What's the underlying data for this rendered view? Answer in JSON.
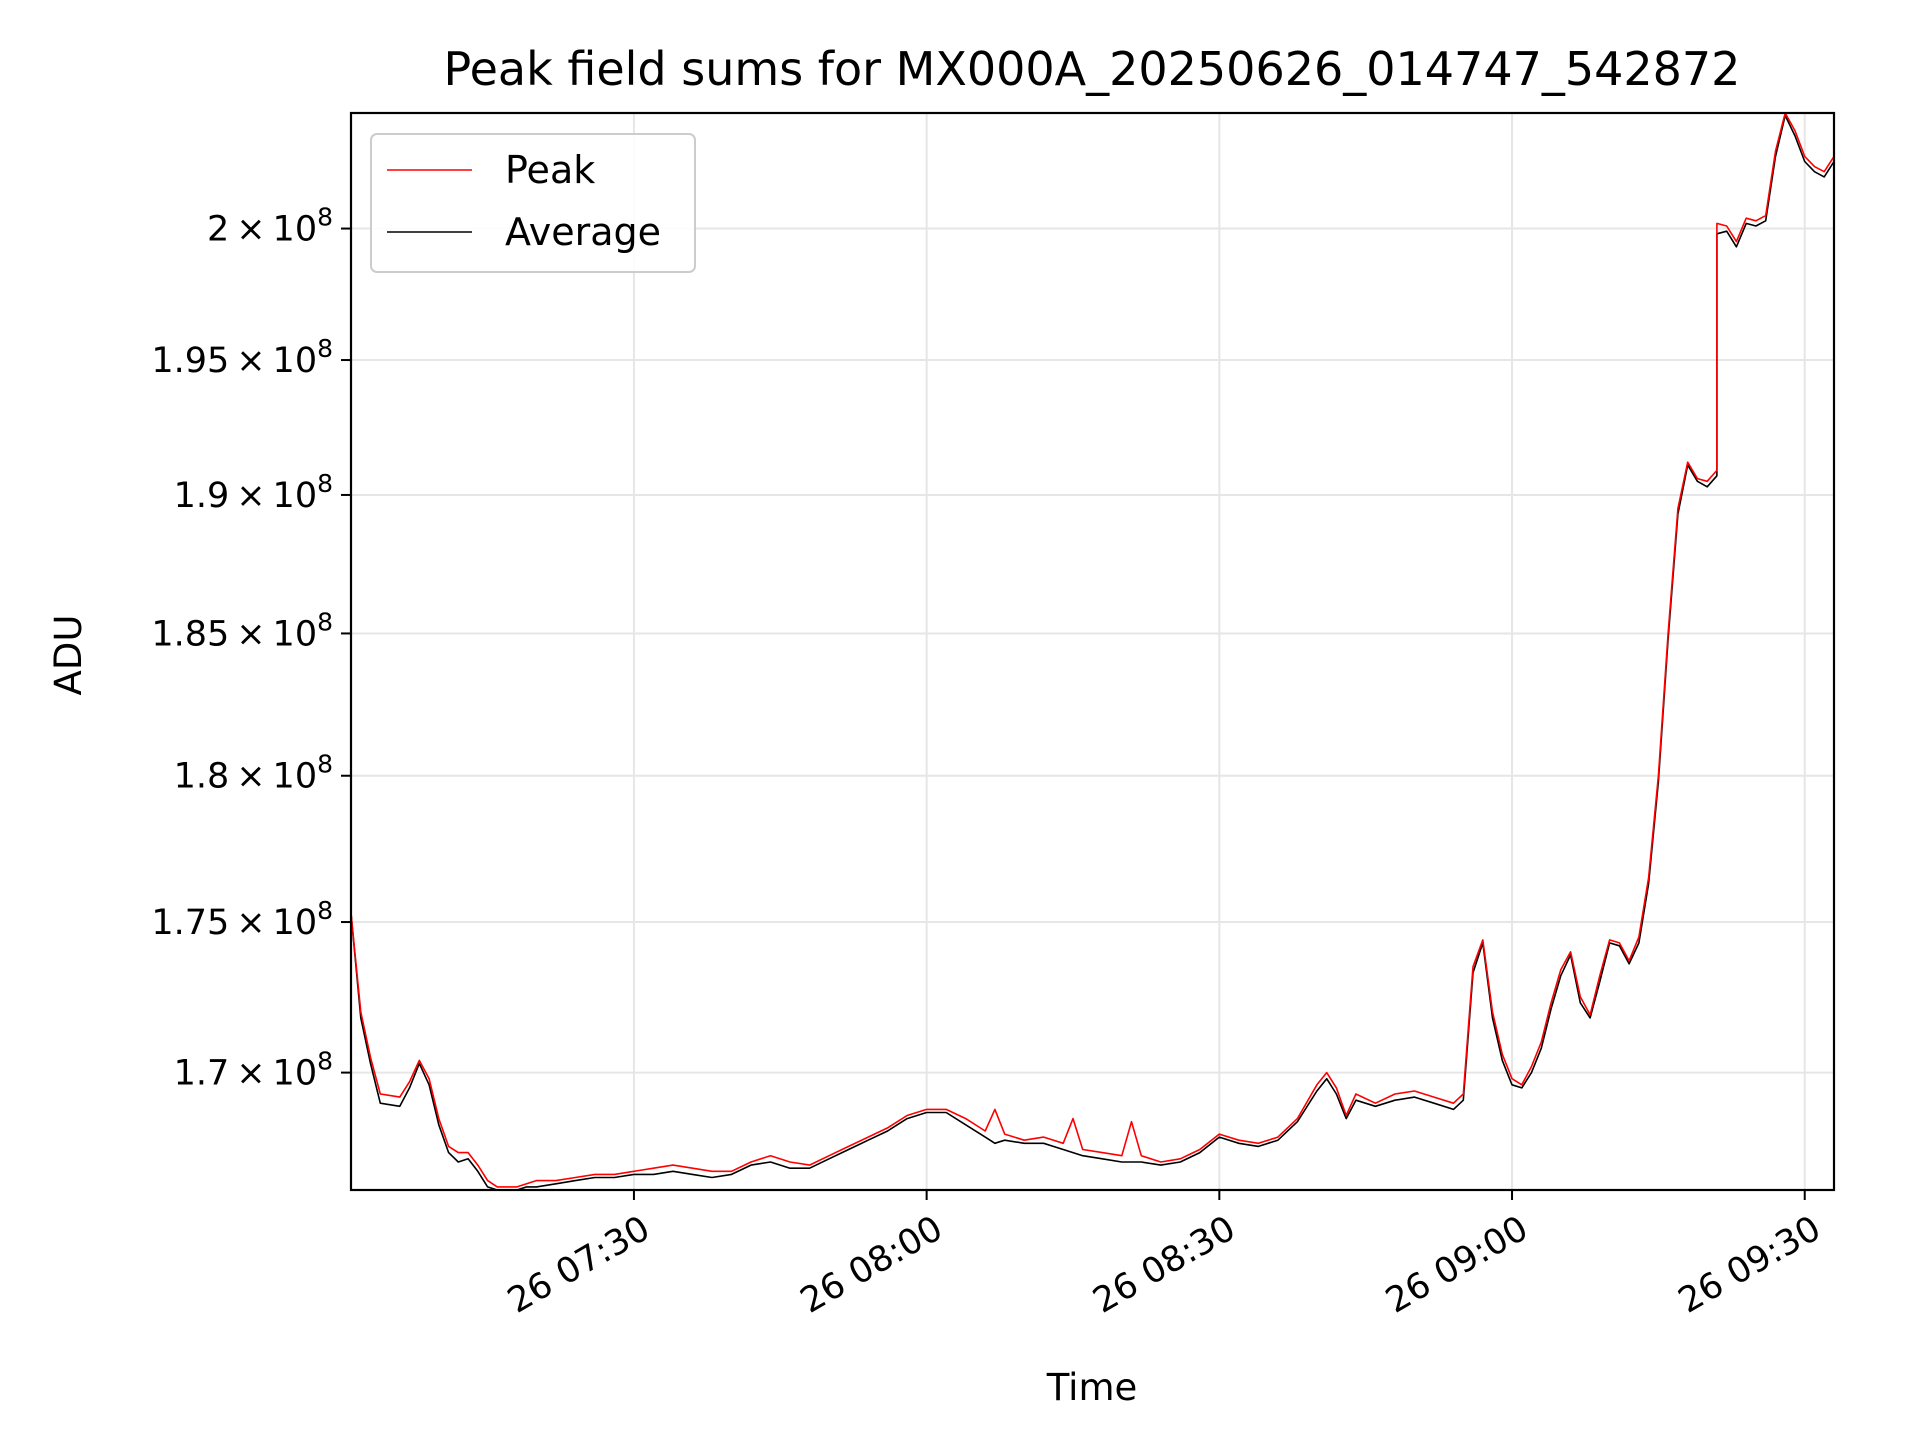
{
  "chart_data": {
    "type": "line",
    "title": "Peak field sums for MX000A_20250626_014747_542872",
    "xlabel": "Time",
    "ylabel": "ADU",
    "x_type": "time",
    "xlim": [
      "2025-06-26 07:01",
      "2025-06-26 09:33"
    ],
    "ylim": [
      166200000,
      204500000
    ],
    "y_scale": "log",
    "grid": true,
    "legend_position": "top-left",
    "x_ticks": [
      {
        "value": "2025-06-26 07:30",
        "label": "26 07:30"
      },
      {
        "value": "2025-06-26 08:00",
        "label": "26 08:00"
      },
      {
        "value": "2025-06-26 08:30",
        "label": "26 08:30"
      },
      {
        "value": "2025-06-26 09:00",
        "label": "26 09:00"
      },
      {
        "value": "2025-06-26 09:30",
        "label": "26 09:30"
      }
    ],
    "y_ticks": [
      {
        "value": 170000000,
        "mantissa": "1.7",
        "exponent": "8"
      },
      {
        "value": 175000000,
        "mantissa": "1.75",
        "exponent": "8"
      },
      {
        "value": 180000000,
        "mantissa": "1.8",
        "exponent": "8"
      },
      {
        "value": 185000000,
        "mantissa": "1.85",
        "exponent": "8"
      },
      {
        "value": 190000000,
        "mantissa": "1.9",
        "exponent": "8"
      },
      {
        "value": 195000000,
        "mantissa": "1.95",
        "exponent": "8"
      },
      {
        "value": 200000000,
        "mantissa": "2",
        "exponent": "8"
      }
    ],
    "series": [
      {
        "name": "Peak",
        "color": "#ff0000",
        "points": [
          [
            "2025-06-26 07:01",
            175300000
          ],
          [
            "2025-06-26 07:02",
            172000000
          ],
          [
            "2025-06-26 07:03",
            170500000
          ],
          [
            "2025-06-26 07:04",
            169300000
          ],
          [
            "2025-06-26 07:06",
            169200000
          ],
          [
            "2025-06-26 07:07",
            169700000
          ],
          [
            "2025-06-26 07:08",
            170400000
          ],
          [
            "2025-06-26 07:09",
            169800000
          ],
          [
            "2025-06-26 07:10",
            168500000
          ],
          [
            "2025-06-26 07:11",
            167600000
          ],
          [
            "2025-06-26 07:12",
            167400000
          ],
          [
            "2025-06-26 07:13",
            167400000
          ],
          [
            "2025-06-26 07:14",
            167000000
          ],
          [
            "2025-06-26 07:15",
            166500000
          ],
          [
            "2025-06-26 07:16",
            166300000
          ],
          [
            "2025-06-26 07:18",
            166300000
          ],
          [
            "2025-06-26 07:19",
            166400000
          ],
          [
            "2025-06-26 07:20",
            166500000
          ],
          [
            "2025-06-26 07:22",
            166500000
          ],
          [
            "2025-06-26 07:24",
            166600000
          ],
          [
            "2025-06-26 07:26",
            166700000
          ],
          [
            "2025-06-26 07:28",
            166700000
          ],
          [
            "2025-06-26 07:30",
            166800000
          ],
          [
            "2025-06-26 07:32",
            166900000
          ],
          [
            "2025-06-26 07:34",
            167000000
          ],
          [
            "2025-06-26 07:36",
            166900000
          ],
          [
            "2025-06-26 07:38",
            166800000
          ],
          [
            "2025-06-26 07:40",
            166800000
          ],
          [
            "2025-06-26 07:42",
            167100000
          ],
          [
            "2025-06-26 07:44",
            167300000
          ],
          [
            "2025-06-26 07:46",
            167100000
          ],
          [
            "2025-06-26 07:48",
            167000000
          ],
          [
            "2025-06-26 07:50",
            167300000
          ],
          [
            "2025-06-26 07:52",
            167600000
          ],
          [
            "2025-06-26 07:54",
            167900000
          ],
          [
            "2025-06-26 07:56",
            168200000
          ],
          [
            "2025-06-26 07:58",
            168600000
          ],
          [
            "2025-06-26 08:00",
            168800000
          ],
          [
            "2025-06-26 08:02",
            168800000
          ],
          [
            "2025-06-26 08:04",
            168500000
          ],
          [
            "2025-06-26 08:06",
            168100000
          ],
          [
            "2025-06-26 08:07",
            168800000
          ],
          [
            "2025-06-26 08:08",
            168000000
          ],
          [
            "2025-06-26 08:10",
            167800000
          ],
          [
            "2025-06-26 08:12",
            167900000
          ],
          [
            "2025-06-26 08:14",
            167700000
          ],
          [
            "2025-06-26 08:15",
            168500000
          ],
          [
            "2025-06-26 08:16",
            167500000
          ],
          [
            "2025-06-26 08:18",
            167400000
          ],
          [
            "2025-06-26 08:20",
            167300000
          ],
          [
            "2025-06-26 08:21",
            168400000
          ],
          [
            "2025-06-26 08:22",
            167300000
          ],
          [
            "2025-06-26 08:24",
            167100000
          ],
          [
            "2025-06-26 08:26",
            167200000
          ],
          [
            "2025-06-26 08:28",
            167500000
          ],
          [
            "2025-06-26 08:30",
            168000000
          ],
          [
            "2025-06-26 08:32",
            167800000
          ],
          [
            "2025-06-26 08:34",
            167700000
          ],
          [
            "2025-06-26 08:36",
            167900000
          ],
          [
            "2025-06-26 08:38",
            168500000
          ],
          [
            "2025-06-26 08:40",
            169600000
          ],
          [
            "2025-06-26 08:41",
            170000000
          ],
          [
            "2025-06-26 08:42",
            169500000
          ],
          [
            "2025-06-26 08:43",
            168600000
          ],
          [
            "2025-06-26 08:44",
            169300000
          ],
          [
            "2025-06-26 08:46",
            169000000
          ],
          [
            "2025-06-26 08:48",
            169300000
          ],
          [
            "2025-06-26 08:50",
            169400000
          ],
          [
            "2025-06-26 08:52",
            169200000
          ],
          [
            "2025-06-26 08:54",
            169000000
          ],
          [
            "2025-06-26 08:55",
            169300000
          ],
          [
            "2025-06-26 08:56",
            173500000
          ],
          [
            "2025-06-26 08:57",
            174400000
          ],
          [
            "2025-06-26 08:58",
            172000000
          ],
          [
            "2025-06-26 08:59",
            170600000
          ],
          [
            "2025-06-26 09:00",
            169800000
          ],
          [
            "2025-06-26 09:01",
            169600000
          ],
          [
            "2025-06-26 09:02",
            170200000
          ],
          [
            "2025-06-26 09:03",
            171000000
          ],
          [
            "2025-06-26 09:04",
            172300000
          ],
          [
            "2025-06-26 09:05",
            173400000
          ],
          [
            "2025-06-26 09:06",
            174000000
          ],
          [
            "2025-06-26 09:07",
            172500000
          ],
          [
            "2025-06-26 09:08",
            171900000
          ],
          [
            "2025-06-26 09:09",
            173200000
          ],
          [
            "2025-06-26 09:10",
            174400000
          ],
          [
            "2025-06-26 09:11",
            174300000
          ],
          [
            "2025-06-26 09:12",
            173700000
          ],
          [
            "2025-06-26 09:13",
            174500000
          ],
          [
            "2025-06-26 09:14",
            176500000
          ],
          [
            "2025-06-26 09:15",
            180000000
          ],
          [
            "2025-06-26 09:16",
            185000000
          ],
          [
            "2025-06-26 09:17",
            189500000
          ],
          [
            "2025-06-26 09:18",
            191200000
          ],
          [
            "2025-06-26 09:19",
            190600000
          ],
          [
            "2025-06-26 09:20",
            190500000
          ],
          [
            "2025-06-26 09:21",
            190900000
          ],
          [
            "2025-06-26 09:21",
            200200000
          ],
          [
            "2025-06-26 09:22",
            200100000
          ],
          [
            "2025-06-26 09:23",
            199500000
          ],
          [
            "2025-06-26 09:24",
            200400000
          ],
          [
            "2025-06-26 09:25",
            200300000
          ],
          [
            "2025-06-26 09:26",
            200500000
          ],
          [
            "2025-06-26 09:27",
            203000000
          ],
          [
            "2025-06-26 09:28",
            204500000
          ],
          [
            "2025-06-26 09:29",
            203800000
          ],
          [
            "2025-06-26 09:30",
            202800000
          ],
          [
            "2025-06-26 09:31",
            202400000
          ],
          [
            "2025-06-26 09:32",
            202200000
          ],
          [
            "2025-06-26 09:33",
            202800000
          ]
        ]
      },
      {
        "name": "Average",
        "color": "#000000",
        "points": [
          [
            "2025-06-26 07:01",
            175300000
          ],
          [
            "2025-06-26 07:02",
            171800000
          ],
          [
            "2025-06-26 07:03",
            170300000
          ],
          [
            "2025-06-26 07:04",
            169000000
          ],
          [
            "2025-06-26 07:06",
            168900000
          ],
          [
            "2025-06-26 07:07",
            169500000
          ],
          [
            "2025-06-26 07:08",
            170300000
          ],
          [
            "2025-06-26 07:09",
            169600000
          ],
          [
            "2025-06-26 07:10",
            168300000
          ],
          [
            "2025-06-26 07:11",
            167400000
          ],
          [
            "2025-06-26 07:12",
            167100000
          ],
          [
            "2025-06-26 07:13",
            167200000
          ],
          [
            "2025-06-26 07:14",
            166800000
          ],
          [
            "2025-06-26 07:15",
            166300000
          ],
          [
            "2025-06-26 07:16",
            166200000
          ],
          [
            "2025-06-26 07:18",
            166200000
          ],
          [
            "2025-06-26 07:19",
            166300000
          ],
          [
            "2025-06-26 07:20",
            166300000
          ],
          [
            "2025-06-26 07:22",
            166400000
          ],
          [
            "2025-06-26 07:24",
            166500000
          ],
          [
            "2025-06-26 07:26",
            166600000
          ],
          [
            "2025-06-26 07:28",
            166600000
          ],
          [
            "2025-06-26 07:30",
            166700000
          ],
          [
            "2025-06-26 07:32",
            166700000
          ],
          [
            "2025-06-26 07:34",
            166800000
          ],
          [
            "2025-06-26 07:36",
            166700000
          ],
          [
            "2025-06-26 07:38",
            166600000
          ],
          [
            "2025-06-26 07:40",
            166700000
          ],
          [
            "2025-06-26 07:42",
            167000000
          ],
          [
            "2025-06-26 07:44",
            167100000
          ],
          [
            "2025-06-26 07:46",
            166900000
          ],
          [
            "2025-06-26 07:48",
            166900000
          ],
          [
            "2025-06-26 07:50",
            167200000
          ],
          [
            "2025-06-26 07:52",
            167500000
          ],
          [
            "2025-06-26 07:54",
            167800000
          ],
          [
            "2025-06-26 07:56",
            168100000
          ],
          [
            "2025-06-26 07:58",
            168500000
          ],
          [
            "2025-06-26 08:00",
            168700000
          ],
          [
            "2025-06-26 08:02",
            168700000
          ],
          [
            "2025-06-26 08:04",
            168300000
          ],
          [
            "2025-06-26 08:06",
            167900000
          ],
          [
            "2025-06-26 08:07",
            167700000
          ],
          [
            "2025-06-26 08:08",
            167800000
          ],
          [
            "2025-06-26 08:10",
            167700000
          ],
          [
            "2025-06-26 08:12",
            167700000
          ],
          [
            "2025-06-26 08:14",
            167500000
          ],
          [
            "2025-06-26 08:15",
            167400000
          ],
          [
            "2025-06-26 08:16",
            167300000
          ],
          [
            "2025-06-26 08:18",
            167200000
          ],
          [
            "2025-06-26 08:20",
            167100000
          ],
          [
            "2025-06-26 08:21",
            167100000
          ],
          [
            "2025-06-26 08:22",
            167100000
          ],
          [
            "2025-06-26 08:24",
            167000000
          ],
          [
            "2025-06-26 08:26",
            167100000
          ],
          [
            "2025-06-26 08:28",
            167400000
          ],
          [
            "2025-06-26 08:30",
            167900000
          ],
          [
            "2025-06-26 08:32",
            167700000
          ],
          [
            "2025-06-26 08:34",
            167600000
          ],
          [
            "2025-06-26 08:36",
            167800000
          ],
          [
            "2025-06-26 08:38",
            168400000
          ],
          [
            "2025-06-26 08:40",
            169400000
          ],
          [
            "2025-06-26 08:41",
            169800000
          ],
          [
            "2025-06-26 08:42",
            169300000
          ],
          [
            "2025-06-26 08:43",
            168500000
          ],
          [
            "2025-06-26 08:44",
            169100000
          ],
          [
            "2025-06-26 08:46",
            168900000
          ],
          [
            "2025-06-26 08:48",
            169100000
          ],
          [
            "2025-06-26 08:50",
            169200000
          ],
          [
            "2025-06-26 08:52",
            169000000
          ],
          [
            "2025-06-26 08:54",
            168800000
          ],
          [
            "2025-06-26 08:55",
            169100000
          ],
          [
            "2025-06-26 08:56",
            173300000
          ],
          [
            "2025-06-26 08:57",
            174300000
          ],
          [
            "2025-06-26 08:58",
            171800000
          ],
          [
            "2025-06-26 08:59",
            170400000
          ],
          [
            "2025-06-26 09:00",
            169600000
          ],
          [
            "2025-06-26 09:01",
            169500000
          ],
          [
            "2025-06-26 09:02",
            170000000
          ],
          [
            "2025-06-26 09:03",
            170800000
          ],
          [
            "2025-06-26 09:04",
            172100000
          ],
          [
            "2025-06-26 09:05",
            173200000
          ],
          [
            "2025-06-26 09:06",
            173900000
          ],
          [
            "2025-06-26 09:07",
            172300000
          ],
          [
            "2025-06-26 09:08",
            171800000
          ],
          [
            "2025-06-26 09:09",
            173000000
          ],
          [
            "2025-06-26 09:10",
            174300000
          ],
          [
            "2025-06-26 09:11",
            174200000
          ],
          [
            "2025-06-26 09:12",
            173600000
          ],
          [
            "2025-06-26 09:13",
            174300000
          ],
          [
            "2025-06-26 09:14",
            176300000
          ],
          [
            "2025-06-26 09:15",
            179800000
          ],
          [
            "2025-06-26 09:16",
            184800000
          ],
          [
            "2025-06-26 09:17",
            189300000
          ],
          [
            "2025-06-26 09:18",
            191100000
          ],
          [
            "2025-06-26 09:19",
            190500000
          ],
          [
            "2025-06-26 09:20",
            190300000
          ],
          [
            "2025-06-26 09:21",
            190700000
          ],
          [
            "2025-06-26 09:21",
            199800000
          ],
          [
            "2025-06-26 09:22",
            199900000
          ],
          [
            "2025-06-26 09:23",
            199300000
          ],
          [
            "2025-06-26 09:24",
            200200000
          ],
          [
            "2025-06-26 09:25",
            200100000
          ],
          [
            "2025-06-26 09:26",
            200300000
          ],
          [
            "2025-06-26 09:27",
            202800000
          ],
          [
            "2025-06-26 09:28",
            204400000
          ],
          [
            "2025-06-26 09:29",
            203600000
          ],
          [
            "2025-06-26 09:30",
            202600000
          ],
          [
            "2025-06-26 09:31",
            202200000
          ],
          [
            "2025-06-26 09:32",
            202000000
          ],
          [
            "2025-06-26 09:33",
            202600000
          ]
        ]
      }
    ]
  }
}
